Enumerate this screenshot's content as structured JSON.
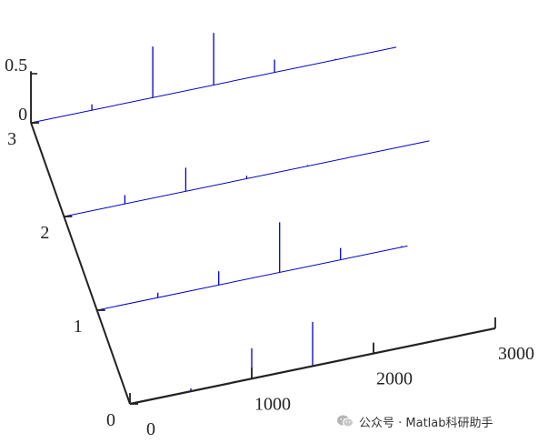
{
  "chart_data": {
    "type": "line",
    "title": "",
    "xlabel": "",
    "ylabel": "",
    "zlabel": "",
    "x_ticks": [
      {
        "value": 0,
        "label": "0"
      },
      {
        "value": 1000,
        "label": "1000"
      },
      {
        "value": 2000,
        "label": "2000"
      },
      {
        "value": 3000,
        "label": "3000"
      }
    ],
    "y_ticks": [
      {
        "value": 0,
        "label": "0"
      },
      {
        "value": 1,
        "label": "1"
      },
      {
        "value": 2,
        "label": "2"
      },
      {
        "value": 3,
        "label": "3"
      }
    ],
    "z_ticks": [
      {
        "value": 0,
        "label": "0"
      },
      {
        "value": 0.5,
        "label": "0.5"
      }
    ],
    "xlim": [
      0,
      3000
    ],
    "ylim": [
      0,
      3
    ],
    "zlim": [
      0,
      0.5
    ],
    "grid": false,
    "line_color": "#0000cc",
    "axis_color": "#222222",
    "series": [
      {
        "y": 0,
        "x_max": 3000,
        "spikes": [
          {
            "x": 500,
            "z": 0.03
          },
          {
            "x": 1000,
            "z": 0.31
          },
          {
            "x": 1500,
            "z": 0.45
          },
          {
            "x": 2000,
            "z": 0.09
          }
        ]
      },
      {
        "y": 1,
        "x_max": 2550,
        "spikes": [
          {
            "x": 500,
            "z": 0.05
          },
          {
            "x": 1000,
            "z": 0.14
          },
          {
            "x": 1500,
            "z": 0.51
          },
          {
            "x": 2000,
            "z": 0.12
          },
          {
            "x": 2500,
            "z": 0.01
          }
        ]
      },
      {
        "y": 2,
        "x_max": 3000,
        "spikes": [
          {
            "x": 500,
            "z": 0.09
          },
          {
            "x": 1000,
            "z": 0.24
          },
          {
            "x": 1500,
            "z": 0.03
          },
          {
            "x": 2000,
            "z": 0.01
          }
        ]
      },
      {
        "y": 3,
        "x_max": 3000,
        "spikes": [
          {
            "x": 500,
            "z": 0.06
          },
          {
            "x": 1000,
            "z": 0.52
          },
          {
            "x": 1500,
            "z": 0.53
          },
          {
            "x": 2000,
            "z": 0.13
          },
          {
            "x": 2500,
            "z": 0.01
          }
        ]
      }
    ]
  },
  "watermark": {
    "text": "公众号 · Matlab科研助手",
    "icon": "wechat-icon"
  }
}
